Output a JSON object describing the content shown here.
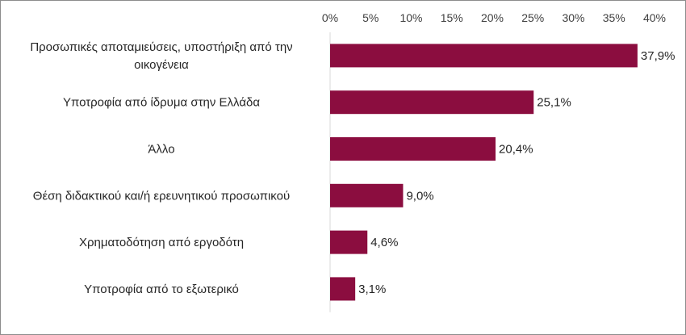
{
  "chart_data": {
    "type": "bar",
    "orientation": "horizontal",
    "xlim": [
      0,
      40
    ],
    "x_ticks": [
      "0%",
      "5%",
      "10%",
      "15%",
      "20%",
      "25%",
      "30%",
      "35%",
      "40%"
    ],
    "x_axis_position": "top",
    "grid": false,
    "bar_color": "#8b0d3f",
    "categories": [
      [
        "Προσωπικές αποταμιεύσεις, υποστήριξη από την",
        "οικογένεια"
      ],
      [
        "Υποτροφία από ίδρυμα στην Ελλάδα"
      ],
      [
        "Άλλο"
      ],
      [
        "Θέση διδακτικού και/ή ερευνητικού προσωπικού"
      ],
      [
        "Χρηματοδότηση από εργοδότη"
      ],
      [
        "Υποτροφία από το εξωτερικό"
      ]
    ],
    "values": [
      37.9,
      25.1,
      20.4,
      9.0,
      4.6,
      3.1
    ],
    "value_labels": [
      "37,9%",
      "25,1%",
      "20,4%",
      "9,0%",
      "4,6%",
      "3,1%"
    ]
  }
}
